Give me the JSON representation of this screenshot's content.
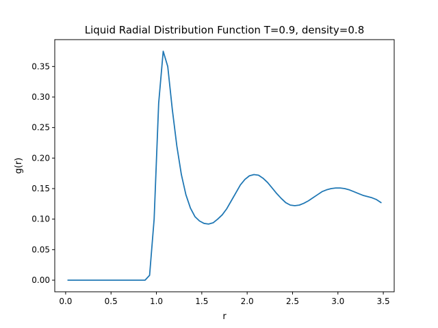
{
  "chart_data": {
    "type": "line",
    "title": "Liquid Radial Distribution Function T=0.9, density=0.8",
    "xlabel": "r",
    "ylabel": "g(r)",
    "xlim": [
      -0.12,
      3.62
    ],
    "ylim": [
      -0.019,
      0.394
    ],
    "xticks": [
      0.0,
      0.5,
      1.0,
      1.5,
      2.0,
      2.5,
      3.0,
      3.5
    ],
    "xtick_labels": [
      "0.0",
      "0.5",
      "1.0",
      "1.5",
      "2.0",
      "2.5",
      "3.0",
      "3.5"
    ],
    "yticks": [
      0.0,
      0.05,
      0.1,
      0.15,
      0.2,
      0.25,
      0.3,
      0.35
    ],
    "ytick_labels": [
      "0.00",
      "0.05",
      "0.10",
      "0.15",
      "0.20",
      "0.25",
      "0.30",
      "0.35"
    ],
    "grid": false,
    "colors": {
      "line": "#1f77b4"
    },
    "series": [
      {
        "x": [
          0.025,
          0.075,
          0.125,
          0.175,
          0.225,
          0.275,
          0.325,
          0.375,
          0.425,
          0.475,
          0.525,
          0.575,
          0.625,
          0.675,
          0.725,
          0.775,
          0.825,
          0.875,
          0.925,
          0.975,
          1.025,
          1.075,
          1.125,
          1.175,
          1.225,
          1.275,
          1.325,
          1.375,
          1.425,
          1.475,
          1.525,
          1.575,
          1.625,
          1.675,
          1.725,
          1.775,
          1.825,
          1.875,
          1.925,
          1.975,
          2.025,
          2.075,
          2.125,
          2.175,
          2.225,
          2.275,
          2.325,
          2.375,
          2.425,
          2.475,
          2.525,
          2.575,
          2.625,
          2.675,
          2.725,
          2.775,
          2.825,
          2.875,
          2.925,
          2.975,
          3.025,
          3.075,
          3.125,
          3.175,
          3.225,
          3.275,
          3.325,
          3.375,
          3.425,
          3.475
        ],
        "y": [
          0.0,
          0.0,
          0.0,
          0.0,
          0.0,
          0.0,
          0.0,
          0.0,
          0.0,
          0.0,
          0.0,
          0.0,
          0.0,
          0.0,
          0.0,
          0.0,
          0.0,
          0.0,
          0.008,
          0.1,
          0.29,
          0.375,
          0.35,
          0.28,
          0.22,
          0.173,
          0.14,
          0.118,
          0.104,
          0.097,
          0.093,
          0.092,
          0.094,
          0.1,
          0.107,
          0.117,
          0.13,
          0.143,
          0.156,
          0.165,
          0.171,
          0.173,
          0.172,
          0.167,
          0.16,
          0.151,
          0.142,
          0.134,
          0.127,
          0.123,
          0.122,
          0.123,
          0.126,
          0.13,
          0.135,
          0.14,
          0.145,
          0.148,
          0.15,
          0.151,
          0.151,
          0.15,
          0.148,
          0.145,
          0.142,
          0.139,
          0.137,
          0.135,
          0.132,
          0.127
        ]
      }
    ]
  }
}
